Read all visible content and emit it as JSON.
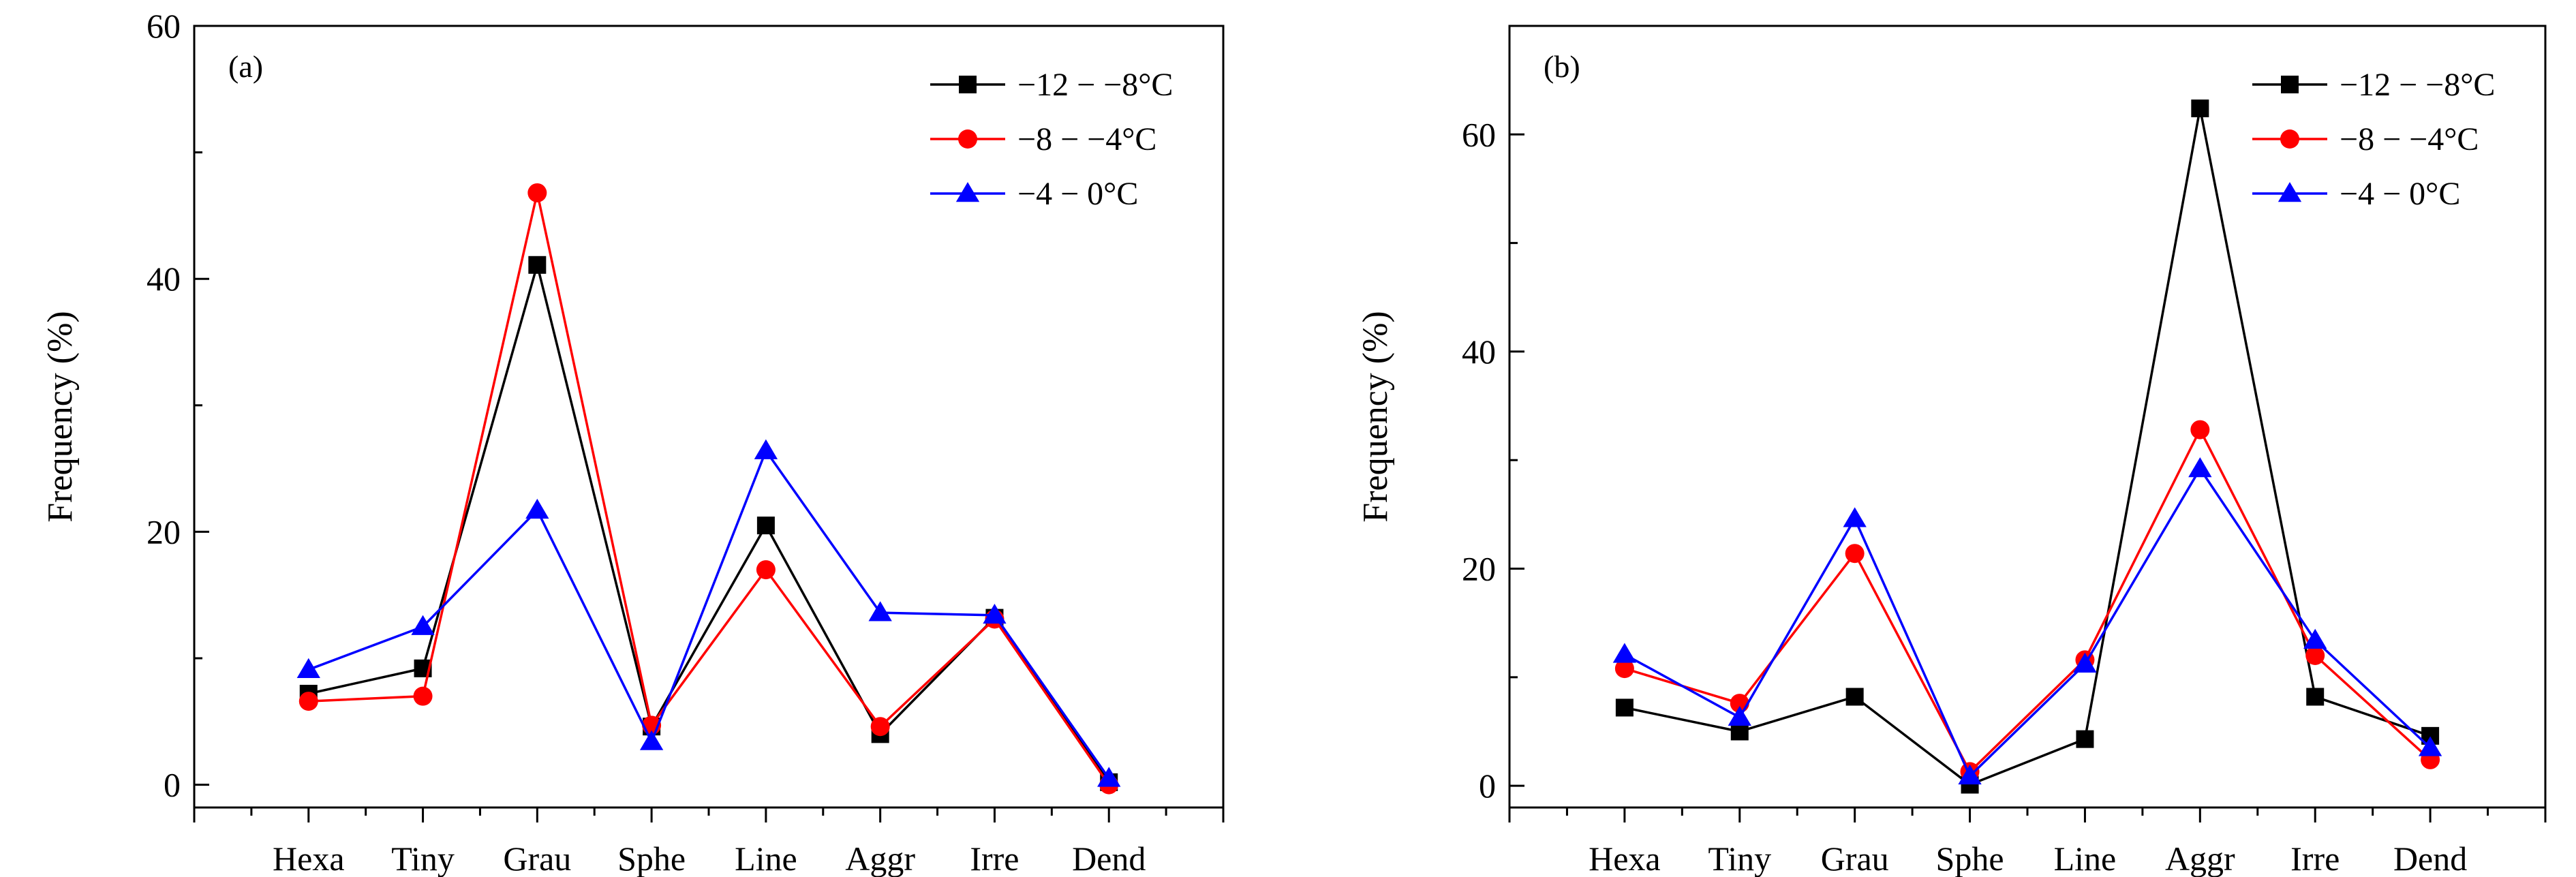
{
  "chart_data": [
    {
      "type": "line",
      "panel_label": "(a)",
      "ylabel": "Frequency (%)",
      "xlabel": "",
      "categories": [
        "Hexa",
        "Tiny",
        "Grau",
        "Sphe",
        "Line",
        "Aggr",
        "Irre",
        "Dend"
      ],
      "ylim": [
        -1.8,
        60
      ],
      "yticks": [
        0,
        20,
        40,
        60
      ],
      "ytick_labels": [
        "0",
        "20",
        "40",
        "60"
      ],
      "legend_position": "top-right",
      "series": [
        {
          "name": "−12 − −8°C",
          "color": "#000000",
          "marker": "square",
          "values": [
            7.2,
            9.2,
            41.1,
            4.6,
            20.5,
            4.0,
            13.2,
            0.2
          ]
        },
        {
          "name": "−8 − −4°C",
          "color": "#ff0000",
          "marker": "circle",
          "values": [
            6.6,
            7.0,
            46.8,
            4.7,
            17.0,
            4.6,
            13.1,
            0.0
          ]
        },
        {
          "name": "−4 − 0°C",
          "color": "#0000ff",
          "marker": "triangle",
          "values": [
            9.1,
            12.5,
            21.7,
            3.4,
            26.4,
            13.6,
            13.4,
            0.5
          ]
        }
      ]
    },
    {
      "type": "line",
      "panel_label": "(b)",
      "ylabel": "Frequency (%)",
      "xlabel": "",
      "categories": [
        "Hexa",
        "Tiny",
        "Grau",
        "Sphe",
        "Line",
        "Aggr",
        "Irre",
        "Dend"
      ],
      "ylim": [
        -2,
        70
      ],
      "yticks": [
        0,
        20,
        40,
        60
      ],
      "ytick_labels": [
        "0",
        "20",
        "40",
        "60"
      ],
      "legend_position": "top-right",
      "series": [
        {
          "name": "−12 − −8°C",
          "color": "#000000",
          "marker": "square",
          "values": [
            7.2,
            5.0,
            8.2,
            0.1,
            4.3,
            62.4,
            8.2,
            4.6
          ]
        },
        {
          "name": "−8 − −4°C",
          "color": "#ff0000",
          "marker": "circle",
          "values": [
            10.8,
            7.6,
            21.4,
            1.3,
            11.6,
            32.8,
            12.0,
            2.4
          ]
        },
        {
          "name": "−4 − 0°C",
          "color": "#0000ff",
          "marker": "triangle",
          "values": [
            12.1,
            6.3,
            24.6,
            0.9,
            11.2,
            29.2,
            13.4,
            3.5
          ]
        }
      ]
    }
  ]
}
